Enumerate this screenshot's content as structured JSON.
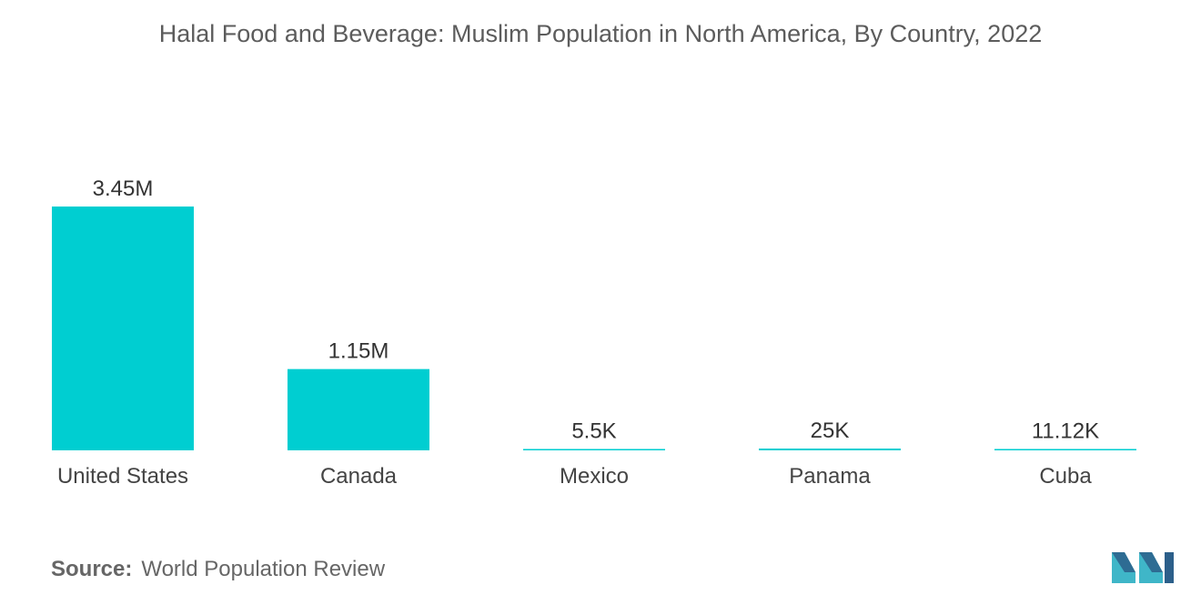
{
  "chart_data": {
    "type": "bar",
    "title": "Halal Food and Beverage: Muslim Population in North America, By Country, 2022",
    "categories": [
      "United States",
      "Canada",
      "Mexico",
      "Panama",
      "Cuba"
    ],
    "values": [
      3450000,
      1150000,
      5500,
      25000,
      11120
    ],
    "data_labels": [
      "3.45M",
      "1.15M",
      "5.5K",
      "25K",
      "11.12K"
    ],
    "xlabel": "",
    "ylabel": "",
    "ylim": [
      0,
      3450000
    ],
    "grid": false,
    "bar_color": "#00CED1"
  },
  "source": {
    "prefix": "Source:",
    "text": "World Population Review"
  },
  "logo": {
    "icon": "mordor-intelligence-logo-icon",
    "colors": [
      "#2C5F8A",
      "#3FB6C8"
    ]
  }
}
